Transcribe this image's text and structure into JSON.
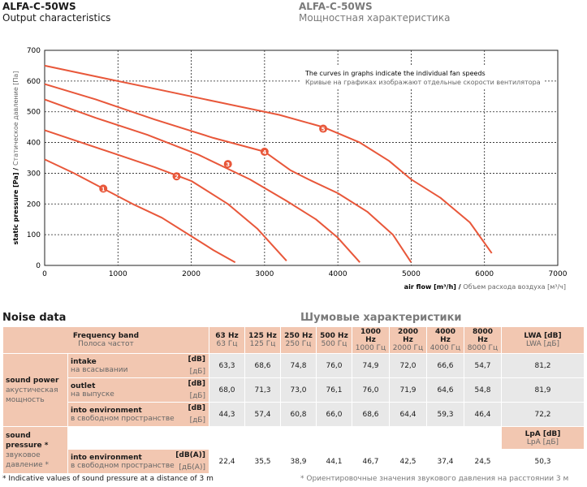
{
  "header": {
    "model_left": "ALFA-C-50WS",
    "subtitle_left": "Output characteristics",
    "model_right": "ALFA-C-50WS",
    "subtitle_right": "Мощностная характеристика"
  },
  "chart_data": {
    "type": "line",
    "ylabel_en": "static pressure [Pa]",
    "ylabel_ru": "Статическое давление [Па]",
    "xlabel_en": "air flow [m³/h]",
    "xlabel_ru": "Объем расхода воздуха [м³/ч]",
    "xlim": [
      0,
      7000
    ],
    "ylim": [
      0,
      700
    ],
    "xticks": [
      0,
      1000,
      2000,
      3000,
      4000,
      5000,
      6000,
      7000
    ],
    "yticks": [
      0,
      100,
      200,
      300,
      400,
      500,
      600,
      700
    ],
    "grid": true,
    "note_en": "The curves in graphs indicate the individual fan speeds",
    "note_ru": "Кривые на графиках изображают отдельные скорости вентилятора",
    "series": [
      {
        "name": "1",
        "label_at": [
          800,
          250
        ],
        "x": [
          0,
          400,
          800,
          1200,
          1600,
          2000,
          2300,
          2600
        ],
        "y": [
          345,
          300,
          250,
          200,
          155,
          95,
          50,
          10
        ]
      },
      {
        "name": "2",
        "label_at": [
          1800,
          290
        ],
        "x": [
          0,
          500,
          1000,
          1500,
          2000,
          2500,
          2900,
          3300
        ],
        "y": [
          440,
          400,
          360,
          320,
          275,
          200,
          120,
          15
        ]
      },
      {
        "name": "3",
        "label_at": [
          2500,
          330
        ],
        "x": [
          0,
          700,
          1400,
          2100,
          2800,
          3300,
          3700,
          4000,
          4300
        ],
        "y": [
          540,
          480,
          425,
          360,
          280,
          210,
          150,
          90,
          10
        ]
      },
      {
        "name": "4",
        "label_at": [
          3000,
          370
        ],
        "x": [
          0,
          700,
          1500,
          2300,
          3000,
          3350,
          3600,
          4000,
          4400,
          4750,
          5000
        ],
        "y": [
          590,
          540,
          475,
          415,
          370,
          310,
          280,
          235,
          175,
          100,
          10
        ]
      },
      {
        "name": "5",
        "label_at": [
          3800,
          445
        ],
        "x": [
          0,
          800,
          1600,
          2400,
          3200,
          3800,
          4300,
          4700,
          5000,
          5400,
          5800,
          6100
        ],
        "y": [
          650,
          610,
          570,
          530,
          490,
          450,
          400,
          340,
          280,
          220,
          140,
          40
        ]
      }
    ]
  },
  "noise": {
    "title_en": "Noise data",
    "title_ru": "Шумовые характеристики",
    "freq_band_en": "Frequency band",
    "freq_band_ru": "Полоса частот",
    "bands_en": [
      "63 Hz",
      "125 Hz",
      "250 Hz",
      "500 Hz",
      "1000 Hz",
      "2000 Hz",
      "4000 Hz",
      "8000 Hz"
    ],
    "bands_ru": [
      "63 Гц",
      "125 Гц",
      "250 Гц",
      "500 Гц",
      "1000 Гц",
      "2000 Гц",
      "4000 Гц",
      "8000 Гц"
    ],
    "lw_head_en": "LWA [dB]",
    "lw_head_ru": "LWA [дБ]",
    "power_en": "sound power",
    "power_ru": "акустическая мощность",
    "pressure_en": "sound pressure *",
    "pressure_ru": "звуковое давление *",
    "lp_head_en": "LpA [dB]",
    "lp_head_ru": "LpA [дБ]",
    "rows": [
      {
        "label_en": "intake",
        "label_ru": "на всасывании",
        "unit_en": "[dB]",
        "unit_ru": "[дБ]",
        "values": [
          "63,3",
          "68,6",
          "74,8",
          "76,0",
          "74,9",
          "72,0",
          "66,6",
          "54,7"
        ],
        "total": "81,2"
      },
      {
        "label_en": "outlet",
        "label_ru": "на выпуске",
        "unit_en": "[dB]",
        "unit_ru": "[дБ]",
        "values": [
          "68,0",
          "71,3",
          "73,0",
          "76,1",
          "76,0",
          "71,9",
          "64,6",
          "54,8"
        ],
        "total": "81,9"
      },
      {
        "label_en": "into environment",
        "label_ru": "в свободном пространстве",
        "unit_en": "[dB]",
        "unit_ru": "[дБ]",
        "values": [
          "44,3",
          "57,4",
          "60,8",
          "66,0",
          "68,6",
          "64,4",
          "59,3",
          "46,4"
        ],
        "total": "72,2"
      }
    ],
    "pressure_row": {
      "label_en": "into environment",
      "label_ru": "в свободном пространстве",
      "unit_en": "[dB(A)]",
      "unit_ru": "[дБ(A)]",
      "values": [
        "22,4",
        "35,5",
        "38,9",
        "44,1",
        "46,7",
        "42,5",
        "37,4",
        "24,5"
      ],
      "total": "50,3"
    },
    "footnote_en": "* Indicative values of sound pressure at a distance of 3 m",
    "footnote_ru": "* Ориентировочные значения звукового давления на расстоянии 3 м"
  },
  "colors": {
    "curve": "#e8573a",
    "header_bg": "#f2c7b1",
    "value_bg": "#e8e8e8",
    "grid": "#222222"
  }
}
